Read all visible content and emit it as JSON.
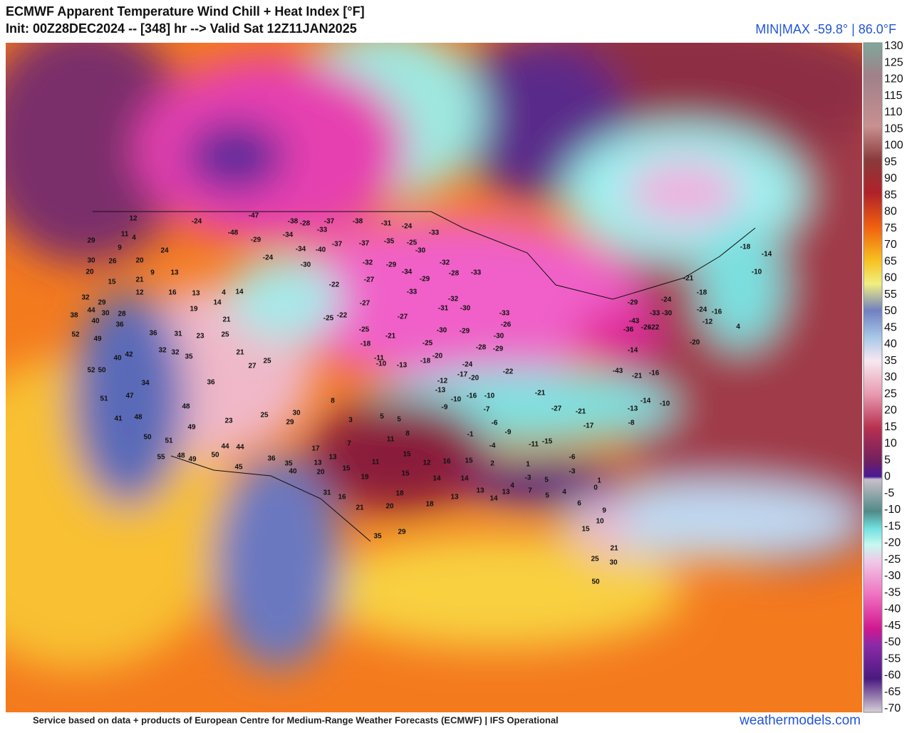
{
  "header": {
    "title": "ECMWF Apparent Temperature Wind Chill + Heat Index [°F]",
    "subtitle": "Init: 00Z28DEC2024 -- [348] hr --> Valid Sat 12Z11JAN2025",
    "minmax": "MIN|MAX -59.8° | 86.0°F"
  },
  "colorbar": {
    "ticks": [
      130,
      125,
      120,
      115,
      110,
      105,
      100,
      95,
      90,
      85,
      80,
      75,
      70,
      65,
      60,
      55,
      50,
      45,
      40,
      35,
      30,
      25,
      20,
      15,
      10,
      5,
      0,
      -5,
      -10,
      -15,
      -20,
      -25,
      -30,
      -35,
      -40,
      -45,
      -50,
      -55,
      -60,
      -65,
      -70
    ]
  },
  "station_labels": [
    12,
    11,
    4,
    29,
    9,
    24,
    20,
    30,
    26,
    20,
    9,
    13,
    15,
    21,
    12,
    16,
    13,
    4,
    14,
    32,
    14,
    19,
    29,
    44,
    30,
    28,
    38,
    40,
    36,
    21,
    52,
    49,
    36,
    31,
    23,
    25,
    32,
    32,
    35,
    21,
    40,
    42,
    27,
    25,
    52,
    50,
    34,
    36,
    47,
    51,
    48,
    41,
    48,
    23,
    25,
    30,
    29,
    49,
    50,
    51,
    44,
    44,
    55,
    48,
    49,
    50,
    45,
    36,
    35,
    40,
    -47,
    -24,
    -38,
    -28,
    -37,
    -38,
    -31,
    -24,
    -34,
    -33,
    -48,
    -29,
    -37,
    -37,
    -35,
    -25,
    -33,
    -34,
    -40,
    -30,
    -24,
    -30,
    -32,
    -29,
    -34,
    -29,
    -32,
    -28,
    -33,
    -22,
    -27,
    -33,
    -32,
    -31,
    -30,
    -27,
    -33,
    -26,
    -22,
    -25,
    -27,
    -30,
    -29,
    -30,
    -29,
    -28,
    -21,
    -25,
    -18,
    -25,
    -18,
    -20,
    -11,
    -10,
    -13,
    -24,
    -22,
    -17,
    -12,
    -20,
    -13,
    -16,
    -10,
    -9,
    -10,
    -7,
    -6,
    -1,
    -4,
    -9,
    -11,
    -3,
    4,
    2,
    1,
    5,
    7,
    5,
    4,
    6,
    0,
    1,
    9,
    10,
    15,
    21,
    25,
    30,
    50,
    8,
    3,
    5,
    5,
    8,
    11,
    7,
    17,
    13,
    13,
    15,
    12,
    16,
    15,
    15,
    11,
    19,
    15,
    14,
    14,
    31,
    16,
    18,
    13,
    13,
    14,
    20,
    18,
    21,
    13,
    35,
    29,
    20,
    -29,
    -43,
    -33,
    -30,
    -24,
    -36,
    -26,
    -22,
    -18,
    -14,
    -10,
    -21,
    -18,
    -24,
    -16,
    -12,
    4,
    -20,
    -43,
    -21,
    -16,
    -13,
    -14,
    -10,
    -8,
    -17,
    -21,
    -27,
    -21,
    -15,
    -6,
    -3,
    -14
  ],
  "footer": {
    "credit": "Service based on data + products of European Centre for Medium-Range Weather Forecasts (ECMWF) | IFS Operational",
    "site": "weathermodels.com"
  }
}
